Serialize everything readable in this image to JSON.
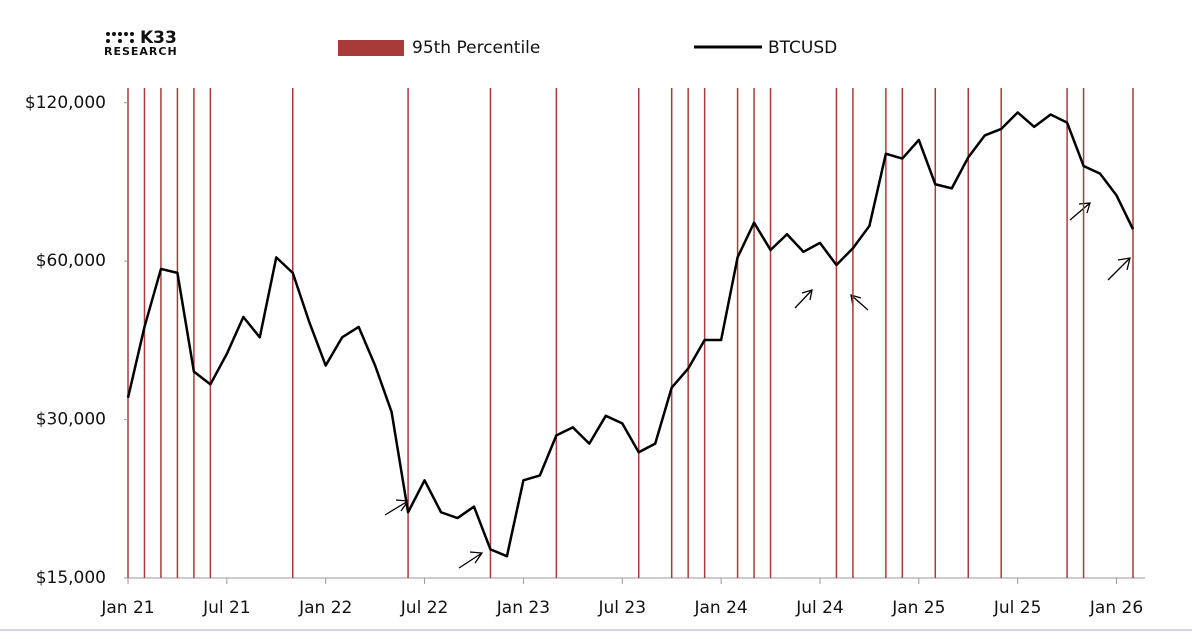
{
  "brand": {
    "name": "K33",
    "sub": "RESEARCH"
  },
  "chart_data": {
    "type": "line",
    "log_scale": true,
    "x": [
      "2021-01",
      "2021-02",
      "2021-03",
      "2021-04",
      "2021-05",
      "2021-06",
      "2021-07",
      "2021-08",
      "2021-09",
      "2021-10",
      "2021-11",
      "2021-12",
      "2022-01",
      "2022-02",
      "2022-03",
      "2022-04",
      "2022-05",
      "2022-06",
      "2022-07",
      "2022-08",
      "2022-09",
      "2022-10",
      "2022-11",
      "2022-12",
      "2023-01",
      "2023-02",
      "2023-03",
      "2023-04",
      "2023-05",
      "2023-06",
      "2023-07",
      "2023-08",
      "2023-09",
      "2023-10",
      "2023-11",
      "2023-12",
      "2024-01",
      "2024-02",
      "2024-03",
      "2024-04",
      "2024-05",
      "2024-06",
      "2024-07",
      "2024-08",
      "2024-09",
      "2024-10",
      "2024-11",
      "2024-12",
      "2025-01",
      "2025-02",
      "2025-03",
      "2025-04",
      "2025-05",
      "2025-06",
      "2025-07",
      "2025-08",
      "2025-09",
      "2025-10",
      "2025-11",
      "2025-12",
      "2026-01",
      "2026-02"
    ],
    "series": [
      {
        "name": "BTCUSD",
        "color": "#000000",
        "values": [
          33000,
          45000,
          58000,
          57000,
          37000,
          35000,
          40000,
          47000,
          43000,
          61000,
          57000,
          46000,
          38000,
          43000,
          45000,
          38000,
          31000,
          20000,
          23000,
          20000,
          19500,
          20500,
          17000,
          16500,
          23000,
          23500,
          28000,
          29000,
          27000,
          30500,
          29500,
          26000,
          27000,
          34500,
          37500,
          42500,
          42500,
          61000,
          71000,
          63000,
          67500,
          62500,
          65000,
          59000,
          63500,
          70000,
          96000,
          94000,
          102000,
          84000,
          82500,
          94500,
          104000,
          107000,
          115000,
          108000,
          114000,
          110000,
          91000,
          88000,
          80000,
          69000
        ]
      },
      {
        "name": "95th Percentile",
        "color": "#a93a3a",
        "kind": "events",
        "x": [
          "2021-01",
          "2021-02",
          "2021-03",
          "2021-04",
          "2021-05",
          "2021-06",
          "2021-11",
          "2022-06",
          "2022-11",
          "2023-03",
          "2023-08",
          "2023-10",
          "2023-11",
          "2023-12",
          "2024-02",
          "2024-03",
          "2024-04",
          "2024-08",
          "2024-09",
          "2024-11",
          "2024-12",
          "2025-02",
          "2025-04",
          "2025-06",
          "2025-10",
          "2025-11",
          "2026-02"
        ]
      }
    ],
    "xlim": [
      "2021-01",
      "2026-02"
    ],
    "xticks": [
      {
        "value": "2021-01",
        "label": "Jan 21"
      },
      {
        "value": "2021-07",
        "label": "Jul 21"
      },
      {
        "value": "2022-01",
        "label": "Jan 22"
      },
      {
        "value": "2022-07",
        "label": "Jul 22"
      },
      {
        "value": "2023-01",
        "label": "Jan 23"
      },
      {
        "value": "2023-07",
        "label": "Jul 23"
      },
      {
        "value": "2024-01",
        "label": "Jan 24"
      },
      {
        "value": "2024-07",
        "label": "Jul 24"
      },
      {
        "value": "2025-01",
        "label": "Jan 25"
      },
      {
        "value": "2025-07",
        "label": "Jul 25"
      },
      {
        "value": "2026-01",
        "label": "Jan 26"
      }
    ],
    "ylim": [
      15000,
      128000
    ],
    "yticks": [
      {
        "value": 15000,
        "label": "$15,000"
      },
      {
        "value": 30000,
        "label": "$30,000"
      },
      {
        "value": 60000,
        "label": "$60,000"
      },
      {
        "value": 120000,
        "label": "$120,000"
      }
    ]
  }
}
